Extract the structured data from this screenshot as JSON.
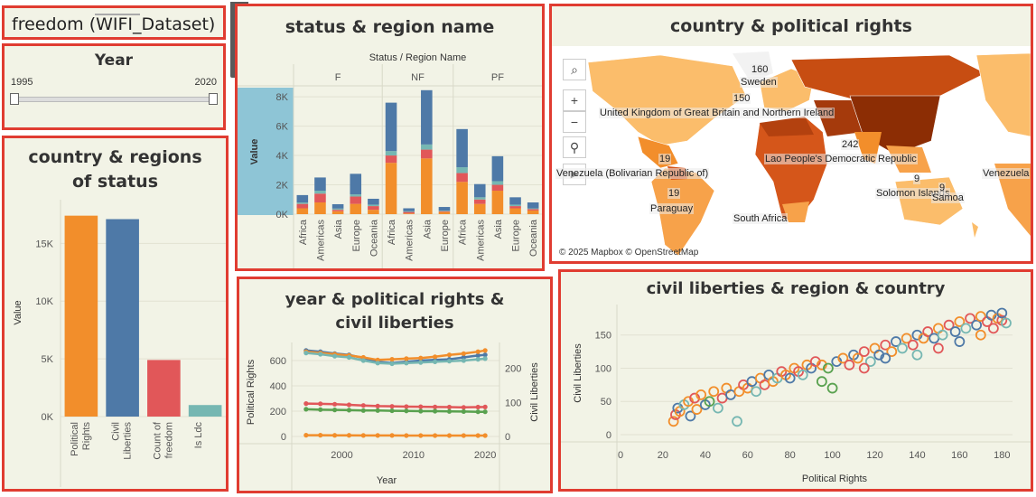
{
  "dashboard": {
    "title": "freedom (WIFI_Dataset)"
  },
  "year_filter": {
    "title": "Year",
    "min_label": "1995",
    "max_label": "2020"
  },
  "toolbar": {
    "icons": [
      "close-icon",
      "popout-icon",
      "filter-icon",
      "dropdown-icon"
    ]
  },
  "status_region": {
    "title": "status & region name",
    "header": "Status / Region Name",
    "y_label": "Value",
    "y_ticks": [
      "8K",
      "6K",
      "4K",
      "2K",
      "0K"
    ],
    "groups": [
      "F",
      "NF",
      "PF"
    ]
  },
  "map": {
    "title": "country & political rights",
    "attribution": "© 2025 Mapbox © OpenStreetMap",
    "labels": [
      "Sweden",
      "United Kingdom of Great Britain and Northern Ireland",
      "Lao People's Democratic Republic",
      "Venezuela (Bolivarian Republic of)",
      "Paraguay",
      "South Africa",
      "Solomon Islands",
      "Samoa",
      "Venezuela"
    ],
    "numbers": [
      "160",
      "150",
      "19",
      "19",
      "242",
      "9",
      "9"
    ]
  },
  "country_regions": {
    "title": "country &  regions of status",
    "y_label": "Value",
    "y_ticks": [
      "15K",
      "10K",
      "5K",
      "0K"
    ]
  },
  "year_rights": {
    "title": "year & political rights & civil liberties",
    "y_left_label": "Political Rights",
    "y_right_label": "Civil Liberties",
    "x_label": "Year",
    "y_left_ticks": [
      "600",
      "400",
      "200",
      "0"
    ],
    "y_right_ticks": [
      "200",
      "100",
      "0"
    ],
    "x_ticks": [
      "2000",
      "2010",
      "2020"
    ]
  },
  "civil_scatter": {
    "title": "civil liberties & region & country",
    "x_label": "Political Rights",
    "y_label": "Civil Liberties",
    "x_ticks": [
      "0",
      "20",
      "40",
      "60",
      "80",
      "100",
      "120",
      "140",
      "160",
      "180"
    ],
    "y_ticks": [
      "150",
      "100",
      "50",
      "0"
    ]
  },
  "chart_data": [
    {
      "type": "bar",
      "stacked": true,
      "id": "status_region",
      "categories": [
        "Africa",
        "Americas",
        "Asia",
        "Europe",
        "Oceania",
        "Africa",
        "Americas",
        "Asia",
        "Europe",
        "Africa",
        "Americas",
        "Asia",
        "Europe",
        "Oceania"
      ],
      "groups": [
        {
          "name": "F",
          "count": 5
        },
        {
          "name": "NF",
          "count": 4
        },
        {
          "name": "PF",
          "count": 5
        }
      ],
      "series_colors": [
        "#f28e2b",
        "#e15759",
        "#76b7b2",
        "#4e79a7"
      ],
      "series": [
        {
          "values": [
            400,
            800,
            200,
            700,
            300,
            3500,
            50,
            3800,
            150,
            2200,
            700,
            1600,
            400,
            250
          ]
        },
        {
          "values": [
            300,
            600,
            100,
            500,
            250,
            500,
            100,
            600,
            50,
            600,
            300,
            400,
            150,
            100
          ]
        },
        {
          "values": [
            100,
            200,
            80,
            150,
            100,
            300,
            50,
            350,
            40,
            400,
            150,
            250,
            100,
            50
          ]
        },
        {
          "values": [
            500,
            900,
            300,
            1400,
            400,
            3300,
            200,
            3700,
            250,
            2600,
            900,
            1700,
            500,
            400
          ]
        }
      ],
      "ylim": [
        0,
        8500
      ]
    },
    {
      "type": "bar",
      "id": "country_regions",
      "categories": [
        "Political Rights",
        "Civil Liberties",
        "Count of freedom",
        "Is Ldc"
      ],
      "values": [
        17400,
        17100,
        4900,
        1000
      ],
      "colors": [
        "#f28e2b",
        "#4e79a7",
        "#e15759",
        "#76b7b2"
      ],
      "ylim": [
        0,
        18000
      ]
    },
    {
      "type": "line",
      "id": "year_rights",
      "x": [
        1995,
        1997,
        1999,
        2001,
        2003,
        2005,
        2007,
        2009,
        2011,
        2013,
        2015,
        2017,
        2019,
        2020
      ],
      "series": [
        {
          "axis": "left",
          "color": "#4e79a7",
          "values": [
            680,
            670,
            655,
            645,
            620,
            590,
            580,
            590,
            600,
            605,
            610,
            625,
            640,
            645
          ]
        },
        {
          "axis": "left",
          "color": "#f28e2b",
          "values": [
            670,
            660,
            650,
            640,
            625,
            605,
            610,
            615,
            620,
            630,
            645,
            655,
            670,
            680
          ]
        },
        {
          "axis": "left",
          "color": "#76b7b2",
          "values": [
            660,
            650,
            635,
            625,
            600,
            580,
            575,
            580,
            585,
            590,
            595,
            600,
            610,
            615
          ]
        },
        {
          "axis": "left",
          "color": "#e15759",
          "values": [
            260,
            258,
            255,
            250,
            245,
            240,
            238,
            236,
            235,
            233,
            232,
            230,
            232,
            233
          ]
        },
        {
          "axis": "left",
          "color": "#59a14f",
          "values": [
            215,
            212,
            210,
            208,
            205,
            205,
            203,
            202,
            200,
            200,
            198,
            197,
            195,
            195
          ]
        },
        {
          "axis": "left",
          "color": "#f28e2b",
          "values": [
            10,
            10,
            9,
            9,
            8,
            8,
            8,
            7,
            7,
            7,
            7,
            7,
            7,
            7
          ]
        }
      ],
      "ylim_left": [
        0,
        700
      ],
      "ylim_right": [
        0,
        260
      ],
      "xlim": [
        1993,
        2022
      ]
    },
    {
      "type": "scatter",
      "id": "civil_scatter",
      "xlim": [
        0,
        185
      ],
      "ylim": [
        0,
        185
      ],
      "points": [
        [
          25,
          20,
          "#f28e2b"
        ],
        [
          26,
          30,
          "#e15759"
        ],
        [
          27,
          40,
          "#4e79a7"
        ],
        [
          28,
          35,
          "#f28e2b"
        ],
        [
          30,
          45,
          "#76b7b2"
        ],
        [
          32,
          50,
          "#f28e2b"
        ],
        [
          33,
          28,
          "#4e79a7"
        ],
        [
          35,
          55,
          "#e15759"
        ],
        [
          36,
          38,
          "#f28e2b"
        ],
        [
          38,
          60,
          "#f28e2b"
        ],
        [
          40,
          45,
          "#4e79a7"
        ],
        [
          42,
          50,
          "#59a14f"
        ],
        [
          44,
          65,
          "#f28e2b"
        ],
        [
          46,
          40,
          "#76b7b2"
        ],
        [
          48,
          55,
          "#e15759"
        ],
        [
          50,
          70,
          "#f28e2b"
        ],
        [
          52,
          60,
          "#4e79a7"
        ],
        [
          55,
          20,
          "#76b7b2"
        ],
        [
          56,
          65,
          "#f28e2b"
        ],
        [
          58,
          75,
          "#e15759"
        ],
        [
          60,
          70,
          "#f28e2b"
        ],
        [
          62,
          80,
          "#4e79a7"
        ],
        [
          64,
          65,
          "#76b7b2"
        ],
        [
          66,
          85,
          "#f28e2b"
        ],
        [
          68,
          75,
          "#e15759"
        ],
        [
          70,
          90,
          "#4e79a7"
        ],
        [
          72,
          80,
          "#f28e2b"
        ],
        [
          74,
          85,
          "#76b7b2"
        ],
        [
          76,
          95,
          "#e15759"
        ],
        [
          78,
          90,
          "#f28e2b"
        ],
        [
          80,
          85,
          "#4e79a7"
        ],
        [
          82,
          100,
          "#f28e2b"
        ],
        [
          84,
          95,
          "#e15759"
        ],
        [
          86,
          90,
          "#76b7b2"
        ],
        [
          88,
          105,
          "#f28e2b"
        ],
        [
          90,
          100,
          "#4e79a7"
        ],
        [
          92,
          110,
          "#e15759"
        ],
        [
          95,
          105,
          "#f28e2b"
        ],
        [
          98,
          100,
          "#59a14f"
        ],
        [
          100,
          70,
          "#59a14f"
        ],
        [
          102,
          110,
          "#4e79a7"
        ],
        [
          105,
          115,
          "#f28e2b"
        ],
        [
          108,
          105,
          "#e15759"
        ],
        [
          110,
          120,
          "#4e79a7"
        ],
        [
          112,
          115,
          "#f28e2b"
        ],
        [
          115,
          125,
          "#e15759"
        ],
        [
          118,
          110,
          "#76b7b2"
        ],
        [
          120,
          130,
          "#f28e2b"
        ],
        [
          122,
          120,
          "#4e79a7"
        ],
        [
          125,
          135,
          "#e15759"
        ],
        [
          128,
          125,
          "#f28e2b"
        ],
        [
          130,
          140,
          "#4e79a7"
        ],
        [
          133,
          130,
          "#76b7b2"
        ],
        [
          135,
          145,
          "#f28e2b"
        ],
        [
          138,
          135,
          "#e15759"
        ],
        [
          140,
          150,
          "#4e79a7"
        ],
        [
          143,
          145,
          "#f28e2b"
        ],
        [
          145,
          155,
          "#e15759"
        ],
        [
          148,
          145,
          "#4e79a7"
        ],
        [
          150,
          160,
          "#f28e2b"
        ],
        [
          152,
          150,
          "#76b7b2"
        ],
        [
          155,
          165,
          "#e15759"
        ],
        [
          158,
          155,
          "#4e79a7"
        ],
        [
          160,
          170,
          "#f28e2b"
        ],
        [
          163,
          160,
          "#76b7b2"
        ],
        [
          165,
          175,
          "#e15759"
        ],
        [
          168,
          165,
          "#4e79a7"
        ],
        [
          170,
          178,
          "#f28e2b"
        ],
        [
          173,
          170,
          "#e15759"
        ],
        [
          175,
          180,
          "#4e79a7"
        ],
        [
          178,
          175,
          "#f28e2b"
        ],
        [
          180,
          172,
          "#e15759"
        ],
        [
          182,
          168,
          "#76b7b2"
        ],
        [
          180,
          183,
          "#4e79a7"
        ],
        [
          176,
          160,
          "#e15759"
        ],
        [
          170,
          150,
          "#f28e2b"
        ],
        [
          140,
          120,
          "#76b7b2"
        ],
        [
          125,
          115,
          "#4e79a7"
        ],
        [
          115,
          100,
          "#e15759"
        ],
        [
          95,
          80,
          "#59a14f"
        ],
        [
          150,
          130,
          "#e15759"
        ],
        [
          160,
          140,
          "#4e79a7"
        ]
      ]
    }
  ]
}
